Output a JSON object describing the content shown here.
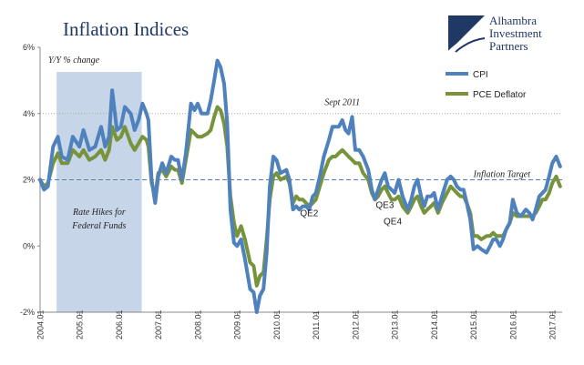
{
  "brand": {
    "line1": "Alhambra",
    "line2": "Investment",
    "line3": "Partners",
    "logo": "alhambra-logo-icon"
  },
  "chart_data": {
    "type": "line",
    "title": "Inflation Indices",
    "subtitle": "Y/Y % change",
    "xlabel": "",
    "ylabel": "",
    "ylim": [
      -2,
      6
    ],
    "yticks": [
      "6%",
      "4%",
      "2%",
      "0%",
      "-2%"
    ],
    "xticks": [
      "2004.01",
      "2005.01",
      "2006.01",
      "2007.01",
      "2008.01",
      "2009.01",
      "2010.01",
      "2011.01",
      "2012.01",
      "2013.01",
      "2014.01",
      "2015.01",
      "2016.01",
      "2017.01"
    ],
    "xlim": [
      "2004.01",
      "2017.04"
    ],
    "grid": false,
    "legend": "top-right",
    "series": [
      {
        "name": "CPI",
        "color": "#4f81bd",
        "points": [
          [
            2004.0,
            2.0
          ],
          [
            2004.1,
            1.7
          ],
          [
            2004.2,
            1.8
          ],
          [
            2004.33,
            3.0
          ],
          [
            2004.45,
            3.3
          ],
          [
            2004.55,
            2.7
          ],
          [
            2004.7,
            2.6
          ],
          [
            2004.83,
            3.3
          ],
          [
            2005.0,
            3.0
          ],
          [
            2005.1,
            3.5
          ],
          [
            2005.25,
            2.9
          ],
          [
            2005.4,
            3.0
          ],
          [
            2005.55,
            3.6
          ],
          [
            2005.65,
            3.0
          ],
          [
            2005.75,
            3.3
          ],
          [
            2005.83,
            4.7
          ],
          [
            2005.95,
            3.5
          ],
          [
            2006.05,
            3.6
          ],
          [
            2006.15,
            4.2
          ],
          [
            2006.3,
            4.0
          ],
          [
            2006.4,
            3.5
          ],
          [
            2006.5,
            3.8
          ],
          [
            2006.6,
            4.3
          ],
          [
            2006.7,
            4.0
          ],
          [
            2006.75,
            3.8
          ],
          [
            2006.83,
            2.0
          ],
          [
            2006.92,
            1.3
          ],
          [
            2007.0,
            2.1
          ],
          [
            2007.1,
            2.5
          ],
          [
            2007.2,
            2.2
          ],
          [
            2007.33,
            2.7
          ],
          [
            2007.42,
            2.6
          ],
          [
            2007.5,
            2.6
          ],
          [
            2007.6,
            2.0
          ],
          [
            2007.7,
            2.8
          ],
          [
            2007.83,
            4.3
          ],
          [
            2007.92,
            4.1
          ],
          [
            2008.0,
            4.3
          ],
          [
            2008.1,
            4.0
          ],
          [
            2008.25,
            4.0
          ],
          [
            2008.33,
            4.4
          ],
          [
            2008.42,
            5.0
          ],
          [
            2008.5,
            5.6
          ],
          [
            2008.58,
            5.4
          ],
          [
            2008.67,
            4.9
          ],
          [
            2008.75,
            3.7
          ],
          [
            2008.83,
            1.1
          ],
          [
            2008.92,
            0.1
          ],
          [
            2009.0,
            0.0
          ],
          [
            2009.1,
            0.2
          ],
          [
            2009.2,
            -0.4
          ],
          [
            2009.33,
            -1.3
          ],
          [
            2009.42,
            -1.4
          ],
          [
            2009.5,
            -2.0
          ],
          [
            2009.58,
            -1.5
          ],
          [
            2009.67,
            -1.3
          ],
          [
            2009.75,
            -0.2
          ],
          [
            2009.83,
            1.8
          ],
          [
            2009.92,
            2.7
          ],
          [
            2010.0,
            2.6
          ],
          [
            2010.1,
            2.2
          ],
          [
            2010.25,
            2.3
          ],
          [
            2010.33,
            2.0
          ],
          [
            2010.42,
            1.1
          ],
          [
            2010.5,
            1.2
          ],
          [
            2010.58,
            1.1
          ],
          [
            2010.67,
            1.2
          ],
          [
            2010.75,
            1.2
          ],
          [
            2010.83,
            1.1
          ],
          [
            2010.92,
            1.5
          ],
          [
            2011.0,
            1.6
          ],
          [
            2011.1,
            2.1
          ],
          [
            2011.2,
            2.7
          ],
          [
            2011.33,
            3.2
          ],
          [
            2011.42,
            3.6
          ],
          [
            2011.5,
            3.6
          ],
          [
            2011.58,
            3.6
          ],
          [
            2011.67,
            3.8
          ],
          [
            2011.75,
            3.5
          ],
          [
            2011.83,
            3.4
          ],
          [
            2011.92,
            3.9
          ],
          [
            2012.0,
            2.9
          ],
          [
            2012.1,
            2.9
          ],
          [
            2012.2,
            2.7
          ],
          [
            2012.33,
            2.3
          ],
          [
            2012.42,
            1.7
          ],
          [
            2012.5,
            1.4
          ],
          [
            2012.58,
            1.7
          ],
          [
            2012.67,
            2.0
          ],
          [
            2012.75,
            2.2
          ],
          [
            2012.83,
            1.8
          ],
          [
            2012.92,
            1.7
          ],
          [
            2013.0,
            1.6
          ],
          [
            2013.1,
            2.0
          ],
          [
            2013.2,
            1.5
          ],
          [
            2013.33,
            1.1
          ],
          [
            2013.42,
            1.4
          ],
          [
            2013.5,
            1.8
          ],
          [
            2013.58,
            2.0
          ],
          [
            2013.67,
            1.5
          ],
          [
            2013.75,
            1.2
          ],
          [
            2013.83,
            1.5
          ],
          [
            2013.92,
            1.5
          ],
          [
            2014.0,
            1.6
          ],
          [
            2014.1,
            1.1
          ],
          [
            2014.2,
            1.5
          ],
          [
            2014.33,
            2.0
          ],
          [
            2014.42,
            2.1
          ],
          [
            2014.5,
            2.0
          ],
          [
            2014.58,
            1.8
          ],
          [
            2014.67,
            1.7
          ],
          [
            2014.75,
            1.7
          ],
          [
            2014.83,
            1.3
          ],
          [
            2014.92,
            0.8
          ],
          [
            2015.0,
            -0.1
          ],
          [
            2015.1,
            0.0
          ],
          [
            2015.2,
            -0.1
          ],
          [
            2015.33,
            -0.2
          ],
          [
            2015.42,
            0.0
          ],
          [
            2015.5,
            0.2
          ],
          [
            2015.58,
            0.2
          ],
          [
            2015.67,
            0.0
          ],
          [
            2015.75,
            0.2
          ],
          [
            2015.83,
            0.5
          ],
          [
            2015.92,
            0.7
          ],
          [
            2016.0,
            1.4
          ],
          [
            2016.1,
            1.0
          ],
          [
            2016.2,
            0.9
          ],
          [
            2016.33,
            1.1
          ],
          [
            2016.42,
            1.0
          ],
          [
            2016.5,
            0.8
          ],
          [
            2016.58,
            1.1
          ],
          [
            2016.67,
            1.5
          ],
          [
            2016.75,
            1.6
          ],
          [
            2016.83,
            1.7
          ],
          [
            2016.92,
            2.1
          ],
          [
            2017.0,
            2.5
          ],
          [
            2017.1,
            2.7
          ],
          [
            2017.2,
            2.4
          ]
        ]
      },
      {
        "name": "PCE Deflator",
        "color": "#77933c",
        "points": [
          [
            2004.0,
            2.0
          ],
          [
            2004.1,
            1.8
          ],
          [
            2004.2,
            1.9
          ],
          [
            2004.33,
            2.5
          ],
          [
            2004.45,
            2.8
          ],
          [
            2004.55,
            2.5
          ],
          [
            2004.7,
            2.5
          ],
          [
            2004.83,
            2.9
          ],
          [
            2005.0,
            2.7
          ],
          [
            2005.1,
            2.9
          ],
          [
            2005.25,
            2.6
          ],
          [
            2005.4,
            2.7
          ],
          [
            2005.55,
            2.9
          ],
          [
            2005.65,
            2.6
          ],
          [
            2005.75,
            2.9
          ],
          [
            2005.83,
            3.6
          ],
          [
            2005.95,
            3.2
          ],
          [
            2006.05,
            3.3
          ],
          [
            2006.15,
            3.6
          ],
          [
            2006.3,
            3.1
          ],
          [
            2006.4,
            2.9
          ],
          [
            2006.5,
            3.1
          ],
          [
            2006.6,
            3.3
          ],
          [
            2006.7,
            3.2
          ],
          [
            2006.75,
            3.0
          ],
          [
            2006.83,
            1.9
          ],
          [
            2006.92,
            1.5
          ],
          [
            2007.0,
            2.2
          ],
          [
            2007.1,
            2.3
          ],
          [
            2007.2,
            2.1
          ],
          [
            2007.33,
            2.4
          ],
          [
            2007.42,
            2.3
          ],
          [
            2007.5,
            2.3
          ],
          [
            2007.6,
            1.9
          ],
          [
            2007.7,
            2.6
          ],
          [
            2007.83,
            3.5
          ],
          [
            2007.92,
            3.4
          ],
          [
            2008.0,
            3.3
          ],
          [
            2008.1,
            3.3
          ],
          [
            2008.25,
            3.4
          ],
          [
            2008.33,
            3.5
          ],
          [
            2008.42,
            3.9
          ],
          [
            2008.5,
            4.2
          ],
          [
            2008.58,
            4.1
          ],
          [
            2008.67,
            3.7
          ],
          [
            2008.75,
            3.0
          ],
          [
            2008.83,
            1.5
          ],
          [
            2008.92,
            0.7
          ],
          [
            2009.0,
            0.3
          ],
          [
            2009.1,
            0.6
          ],
          [
            2009.2,
            0.2
          ],
          [
            2009.33,
            -0.5
          ],
          [
            2009.42,
            -0.6
          ],
          [
            2009.5,
            -1.2
          ],
          [
            2009.58,
            -0.9
          ],
          [
            2009.67,
            -0.8
          ],
          [
            2009.75,
            0.2
          ],
          [
            2009.83,
            1.4
          ],
          [
            2009.92,
            2.1
          ],
          [
            2010.0,
            2.2
          ],
          [
            2010.1,
            2.0
          ],
          [
            2010.25,
            2.1
          ],
          [
            2010.33,
            1.9
          ],
          [
            2010.42,
            1.3
          ],
          [
            2010.5,
            1.5
          ],
          [
            2010.58,
            1.4
          ],
          [
            2010.67,
            1.4
          ],
          [
            2010.75,
            1.3
          ],
          [
            2010.83,
            1.2
          ],
          [
            2010.92,
            1.3
          ],
          [
            2011.0,
            1.4
          ],
          [
            2011.1,
            1.8
          ],
          [
            2011.2,
            2.2
          ],
          [
            2011.33,
            2.6
          ],
          [
            2011.42,
            2.7
          ],
          [
            2011.5,
            2.7
          ],
          [
            2011.58,
            2.8
          ],
          [
            2011.67,
            2.9
          ],
          [
            2011.75,
            2.8
          ],
          [
            2011.83,
            2.7
          ],
          [
            2011.92,
            2.6
          ],
          [
            2012.0,
            2.5
          ],
          [
            2012.1,
            2.5
          ],
          [
            2012.2,
            2.2
          ],
          [
            2012.33,
            2.0
          ],
          [
            2012.42,
            1.6
          ],
          [
            2012.5,
            1.4
          ],
          [
            2012.58,
            1.5
          ],
          [
            2012.67,
            1.7
          ],
          [
            2012.75,
            1.8
          ],
          [
            2012.83,
            1.6
          ],
          [
            2012.92,
            1.4
          ],
          [
            2013.0,
            1.4
          ],
          [
            2013.1,
            1.5
          ],
          [
            2013.2,
            1.2
          ],
          [
            2013.33,
            1.0
          ],
          [
            2013.42,
            1.2
          ],
          [
            2013.5,
            1.4
          ],
          [
            2013.58,
            1.5
          ],
          [
            2013.67,
            1.2
          ],
          [
            2013.75,
            1.0
          ],
          [
            2013.83,
            1.1
          ],
          [
            2013.92,
            1.2
          ],
          [
            2014.0,
            1.3
          ],
          [
            2014.1,
            1.0
          ],
          [
            2014.2,
            1.3
          ],
          [
            2014.33,
            1.6
          ],
          [
            2014.42,
            1.8
          ],
          [
            2014.5,
            1.7
          ],
          [
            2014.58,
            1.6
          ],
          [
            2014.67,
            1.5
          ],
          [
            2014.75,
            1.5
          ],
          [
            2014.83,
            1.3
          ],
          [
            2014.92,
            1.0
          ],
          [
            2015.0,
            0.3
          ],
          [
            2015.1,
            0.3
          ],
          [
            2015.2,
            0.2
          ],
          [
            2015.33,
            0.3
          ],
          [
            2015.42,
            0.3
          ],
          [
            2015.5,
            0.4
          ],
          [
            2015.58,
            0.3
          ],
          [
            2015.67,
            0.3
          ],
          [
            2015.75,
            0.3
          ],
          [
            2015.83,
            0.5
          ],
          [
            2015.92,
            0.7
          ],
          [
            2016.0,
            1.0
          ],
          [
            2016.1,
            0.9
          ],
          [
            2016.2,
            0.9
          ],
          [
            2016.33,
            0.9
          ],
          [
            2016.42,
            0.9
          ],
          [
            2016.5,
            0.9
          ],
          [
            2016.58,
            1.0
          ],
          [
            2016.67,
            1.2
          ],
          [
            2016.75,
            1.4
          ],
          [
            2016.83,
            1.4
          ],
          [
            2016.92,
            1.6
          ],
          [
            2017.0,
            1.9
          ],
          [
            2017.1,
            2.1
          ],
          [
            2017.2,
            1.8
          ]
        ]
      }
    ],
    "shaded_region": {
      "start": 2004.42,
      "end": 2006.58,
      "label": [
        "Rate Hikes for",
        "Federal Funds"
      ],
      "color": "#c6d5e8"
    },
    "reference_lines": [
      {
        "y": 4.0,
        "label": "",
        "style": "dotted"
      },
      {
        "y": 2.0,
        "label": "Inflation Target",
        "style": "dashed"
      }
    ],
    "annotations": [
      {
        "text": "Sept 2011",
        "x": 2011.67,
        "y": 4.25
      },
      {
        "text": "QE2",
        "x": 2010.83,
        "y": 0.9
      },
      {
        "text": "QE3",
        "x": 2012.75,
        "y": 1.15
      },
      {
        "text": "QE4",
        "x": 2012.95,
        "y": 0.65
      }
    ]
  }
}
